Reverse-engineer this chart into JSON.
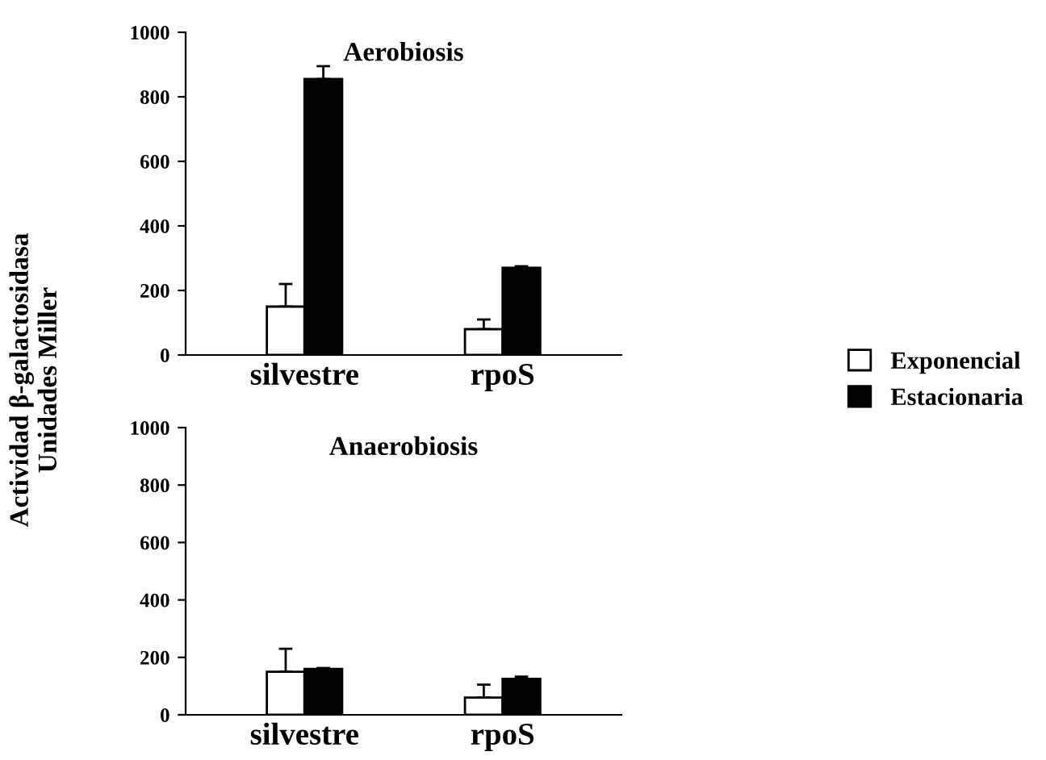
{
  "chart_data": [
    {
      "type": "bar",
      "title": "Aerobiosis",
      "ylabel": "Actividad β-galactosidasa\nUnidades Miller",
      "categories": [
        "silvestre",
        "rpoS"
      ],
      "ylim": [
        0,
        1000
      ],
      "yticks": [
        0,
        200,
        400,
        600,
        800,
        1000
      ],
      "legend": "right",
      "grid": false,
      "series": [
        {
          "name": "Exponencial",
          "color": "#ffffff",
          "values": [
            150,
            80
          ],
          "errors": [
            [
              150,
              220
            ],
            [
              80,
              110
            ]
          ]
        },
        {
          "name": "Estacionaria",
          "color": "#000000",
          "values": [
            855,
            270
          ],
          "errors": [
            [
              855,
              895
            ],
            [
              270,
              275
            ]
          ]
        }
      ]
    },
    {
      "type": "bar",
      "title": "Anaerobiosis",
      "categories": [
        "silvestre",
        "rpoS"
      ],
      "ylim": [
        0,
        1000
      ],
      "yticks": [
        0,
        200,
        400,
        600,
        800,
        1000
      ],
      "grid": false,
      "series": [
        {
          "color": "#ffffff",
          "values": [
            150,
            60
          ],
          "errors": [
            [
              150,
              230
            ],
            [
              60,
              105
            ]
          ]
        },
        {
          "color": "#000000",
          "values": [
            160,
            125
          ],
          "errors": [
            [
              160,
              163
            ],
            [
              125,
              133
            ]
          ]
        }
      ]
    }
  ]
}
